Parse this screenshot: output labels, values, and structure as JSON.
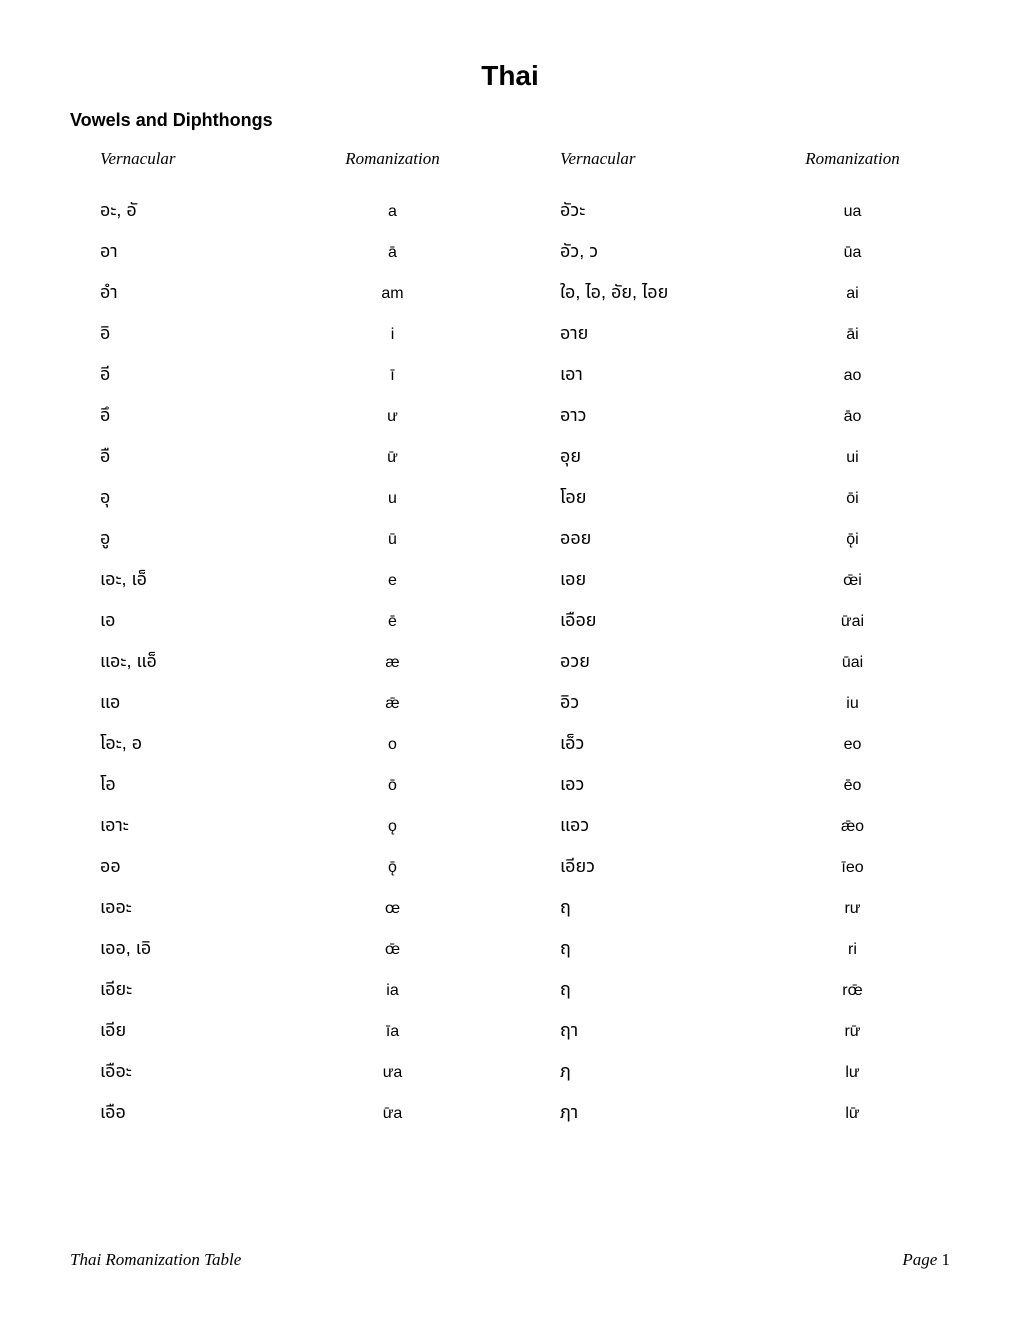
{
  "title": "Thai",
  "section_heading": "Vowels and Diphthongs",
  "headers": {
    "vernacular": "Vernacular",
    "romanization": "Romanization"
  },
  "left_rows": [
    {
      "vern": "อะ, อั",
      "rom": "a"
    },
    {
      "vern": "อา",
      "rom": "ā"
    },
    {
      "vern": "อํา",
      "rom": "am"
    },
    {
      "vern": "อิ",
      "rom": "i"
    },
    {
      "vern": "อี",
      "rom": "ī"
    },
    {
      "vern": "อึ",
      "rom": "ư"
    },
    {
      "vern": "อื",
      "rom": "ư̄"
    },
    {
      "vern": "อุ",
      "rom": "u"
    },
    {
      "vern": "อู",
      "rom": "ū"
    },
    {
      "vern": "เอะ, เอ็",
      "rom": "e"
    },
    {
      "vern": "เอ",
      "rom": "ē"
    },
    {
      "vern": "แอะ, แอ็",
      "rom": "æ"
    },
    {
      "vern": "แอ",
      "rom": "ǣ"
    },
    {
      "vern": "โอะ, อ",
      "rom": "o"
    },
    {
      "vern": "โอ",
      "rom": "ō"
    },
    {
      "vern": "เอาะ",
      "rom": "ǫ"
    },
    {
      "vern": "ออ",
      "rom": "ǭ"
    },
    {
      "vern": "เออะ",
      "rom": "œ"
    },
    {
      "vern": "เออ, เอิ",
      "rom": "œ̄"
    },
    {
      "vern": "เอียะ",
      "rom": "ia"
    },
    {
      "vern": "เอีย",
      "rom": "īa"
    },
    {
      "vern": "เอือะ",
      "rom": "ưa"
    },
    {
      "vern": "เอือ",
      "rom": "ư̄a"
    }
  ],
  "right_rows": [
    {
      "vern": "อัวะ",
      "rom": "ua"
    },
    {
      "vern": "อัว, ว",
      "rom": "ūa"
    },
    {
      "vern": "ใอ, ไอ, อัย, ไอย",
      "rom": "ai"
    },
    {
      "vern": "อาย",
      "rom": "āi"
    },
    {
      "vern": "เอา",
      "rom": "ao"
    },
    {
      "vern": "อาว",
      "rom": "āo"
    },
    {
      "vern": "อุย",
      "rom": "ui"
    },
    {
      "vern": "โอย",
      "rom": "ōi"
    },
    {
      "vern": "ออย",
      "rom": "ǭi"
    },
    {
      "vern": "เอย",
      "rom": "œ̄i"
    },
    {
      "vern": "เอือย",
      "rom": "ư̄ai"
    },
    {
      "vern": "อวย",
      "rom": "ūai"
    },
    {
      "vern": "อิว",
      "rom": "iu"
    },
    {
      "vern": "เอ็ว",
      "rom": "eo"
    },
    {
      "vern": "เอว",
      "rom": "ēo"
    },
    {
      "vern": "แอว",
      "rom": "ǣo"
    },
    {
      "vern": "เอียว",
      "rom": "īeo"
    },
    {
      "vern": "ฤ",
      "rom": "rư"
    },
    {
      "vern": "ฤ",
      "rom": "ri"
    },
    {
      "vern": "ฤ",
      "rom": "rœ̄"
    },
    {
      "vern": "ฤา",
      "rom": "rư̄"
    },
    {
      "vern": "ฦ",
      "rom": "lư"
    },
    {
      "vern": "ฦา",
      "rom": "lư̄"
    }
  ],
  "footer": {
    "left": "Thai Romanization Table",
    "right_label": "Page ",
    "page_num": "1"
  }
}
